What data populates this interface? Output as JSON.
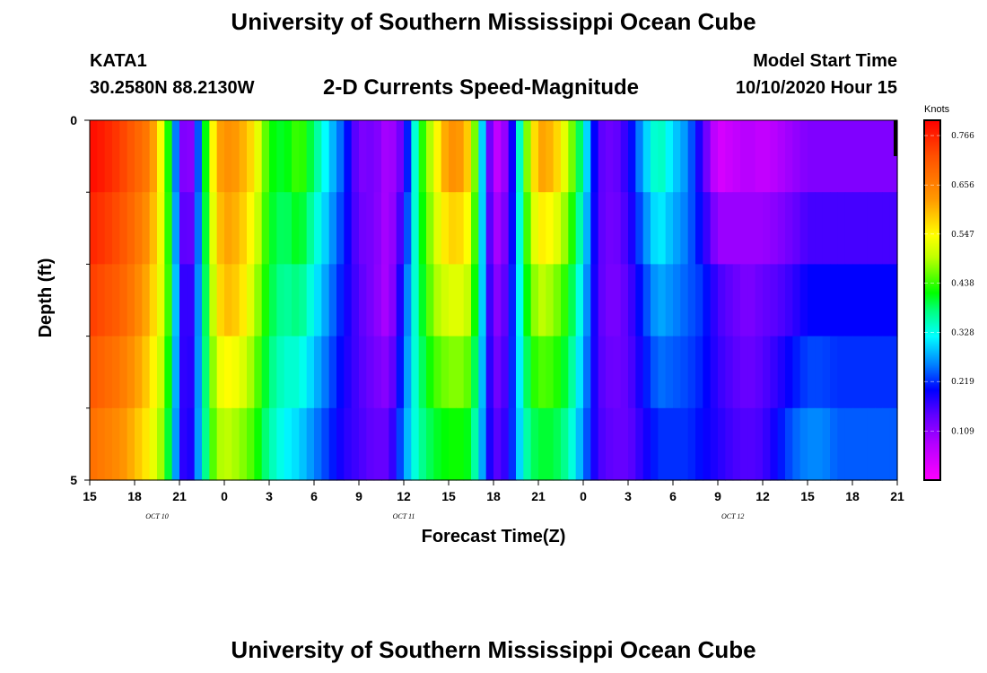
{
  "header": {
    "title": "University of Southern Mississippi Ocean Cube",
    "station": "KATA1",
    "coords": "30.2580N 88.2130W",
    "subtitle": "2-D Currents Speed-Magnitude",
    "model_start_label": "Model Start Time",
    "model_start_value": "10/10/2020 Hour 15"
  },
  "footer": {
    "title": "University of Southern Mississippi Ocean Cube"
  },
  "chart_data": {
    "type": "heatmap",
    "xlabel": "Forecast Time(Z)",
    "ylabel": "Depth (ft)",
    "x_tick_labels": [
      "15",
      "18",
      "21",
      "0",
      "3",
      "6",
      "9",
      "12",
      "15",
      "18",
      "21",
      "0",
      "3",
      "6",
      "9",
      "12",
      "15",
      "18",
      "21"
    ],
    "date_labels": [
      {
        "text": "OCT 10",
        "hour_index": 4.5
      },
      {
        "text": "OCT 11",
        "hour_index": 21
      },
      {
        "text": "OCT 12",
        "hour_index": 43
      }
    ],
    "y_tick_labels": [
      "0",
      "5"
    ],
    "ylim": [
      0,
      5
    ],
    "depth_layers": [
      0.5,
      1.5,
      2.5,
      3.5,
      4.5
    ],
    "colorbar": {
      "unit": "Knots",
      "ticks": [
        "0.766",
        "0.656",
        "0.547",
        "0.438",
        "0.328",
        "0.219",
        "0.109"
      ],
      "range": [
        0.0,
        0.8
      ]
    },
    "speed_profile_knots": {
      "hour_index": [
        0,
        1,
        2,
        3,
        4,
        5,
        5.5,
        6,
        6.5,
        7,
        8,
        8.5,
        9,
        10,
        11,
        12,
        13,
        14,
        15,
        16,
        17,
        18,
        19,
        20,
        21,
        22,
        23,
        24,
        25,
        25.5,
        26,
        27,
        28,
        29,
        29.5,
        30,
        31,
        32,
        33,
        34,
        35,
        36,
        37,
        38,
        39,
        40,
        41,
        42,
        43,
        44,
        45,
        46,
        47,
        48,
        49,
        50,
        51,
        52,
        53,
        54
      ],
      "surface": [
        0.79,
        0.77,
        0.74,
        0.7,
        0.66,
        0.5,
        0.35,
        0.16,
        0.08,
        0.15,
        0.5,
        0.6,
        0.64,
        0.62,
        0.56,
        0.42,
        0.4,
        0.45,
        0.38,
        0.3,
        0.23,
        0.12,
        0.13,
        0.08,
        0.15,
        0.4,
        0.52,
        0.64,
        0.62,
        0.55,
        0.38,
        0.05,
        0.12,
        0.42,
        0.52,
        0.62,
        0.6,
        0.5,
        0.35,
        0.15,
        0.13,
        0.18,
        0.28,
        0.36,
        0.3,
        0.26,
        0.16,
        0.04,
        0.06,
        0.08,
        0.06,
        0.08,
        0.1,
        0.12,
        0.12,
        0.12,
        0.12,
        0.12,
        0.12,
        0.12
      ],
      "mid": [
        0.74,
        0.72,
        0.7,
        0.66,
        0.6,
        0.5,
        0.38,
        0.2,
        0.14,
        0.2,
        0.45,
        0.55,
        0.6,
        0.58,
        0.5,
        0.4,
        0.36,
        0.38,
        0.32,
        0.26,
        0.2,
        0.15,
        0.12,
        0.08,
        0.22,
        0.38,
        0.48,
        0.52,
        0.52,
        0.48,
        0.36,
        0.1,
        0.16,
        0.38,
        0.45,
        0.5,
        0.48,
        0.42,
        0.3,
        0.15,
        0.12,
        0.15,
        0.22,
        0.28,
        0.26,
        0.24,
        0.22,
        0.16,
        0.14,
        0.12,
        0.14,
        0.15,
        0.17,
        0.2,
        0.2,
        0.2,
        0.2,
        0.2,
        0.2,
        0.2
      ],
      "bottom": [
        0.68,
        0.66,
        0.64,
        0.6,
        0.55,
        0.46,
        0.34,
        0.2,
        0.15,
        0.22,
        0.42,
        0.48,
        0.5,
        0.48,
        0.44,
        0.36,
        0.32,
        0.3,
        0.26,
        0.22,
        0.18,
        0.16,
        0.14,
        0.14,
        0.26,
        0.36,
        0.4,
        0.42,
        0.42,
        0.4,
        0.32,
        0.14,
        0.18,
        0.34,
        0.38,
        0.4,
        0.4,
        0.36,
        0.26,
        0.16,
        0.14,
        0.14,
        0.18,
        0.22,
        0.22,
        0.22,
        0.2,
        0.18,
        0.16,
        0.15,
        0.16,
        0.2,
        0.24,
        0.26,
        0.26,
        0.24,
        0.24,
        0.24,
        0.24,
        0.24
      ]
    }
  }
}
